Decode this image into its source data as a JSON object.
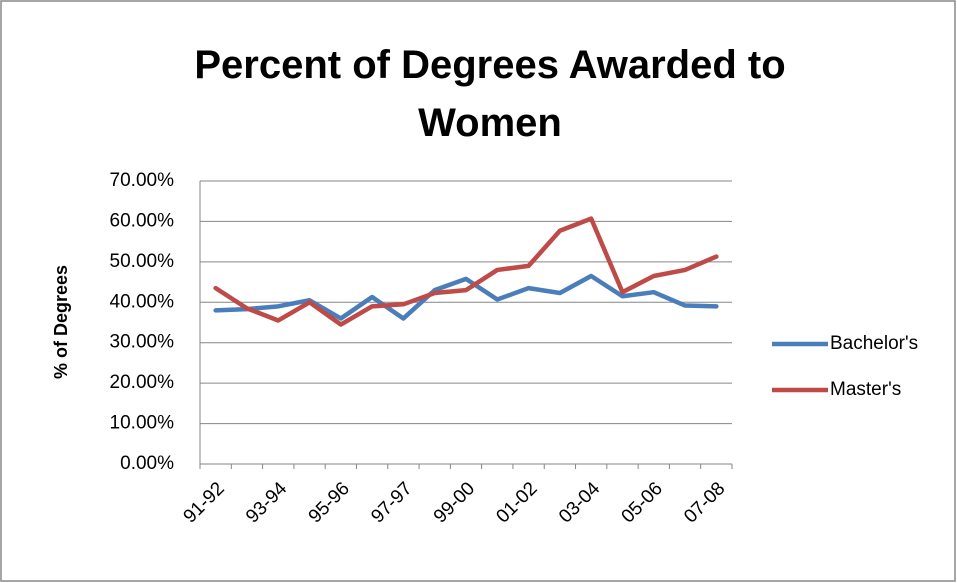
{
  "chart_data": {
    "type": "line",
    "title": "Percent of Degrees Awarded to Women",
    "ylabel": "% of Degrees",
    "categories": [
      "91-92",
      null,
      "93-94",
      null,
      "95-96",
      null,
      "97-97",
      null,
      "99-00",
      null,
      "01-02",
      null,
      "03-04",
      null,
      "05-06",
      null,
      "07-08"
    ],
    "series": [
      {
        "name": "Bachelor's",
        "color": "#4a7ebb",
        "values": [
          38.0,
          38.3,
          39.0,
          40.5,
          36.0,
          41.3,
          36.0,
          43.0,
          45.8,
          40.7,
          43.5,
          42.3,
          46.5,
          41.5,
          42.5,
          39.2,
          39.0
        ]
      },
      {
        "name": "Master's",
        "color": "#be4b48",
        "values": [
          43.5,
          38.5,
          35.5,
          40.0,
          34.5,
          39.0,
          39.5,
          42.3,
          43.0,
          48.0,
          49.0,
          57.7,
          60.7,
          42.5,
          46.5,
          48.0,
          51.3
        ]
      }
    ],
    "ylim": [
      0,
      70
    ],
    "yticks": [
      {
        "value": 0,
        "label": "0.00%"
      },
      {
        "value": 10,
        "label": "10.00%"
      },
      {
        "value": 20,
        "label": "20.00%"
      },
      {
        "value": 30,
        "label": "30.00%"
      },
      {
        "value": 40,
        "label": "40.00%"
      },
      {
        "value": 50,
        "label": "50.00%"
      },
      {
        "value": 60,
        "label": "60.00%"
      },
      {
        "value": 70,
        "label": "70.00%"
      }
    ],
    "grid": true,
    "legend": "right"
  }
}
